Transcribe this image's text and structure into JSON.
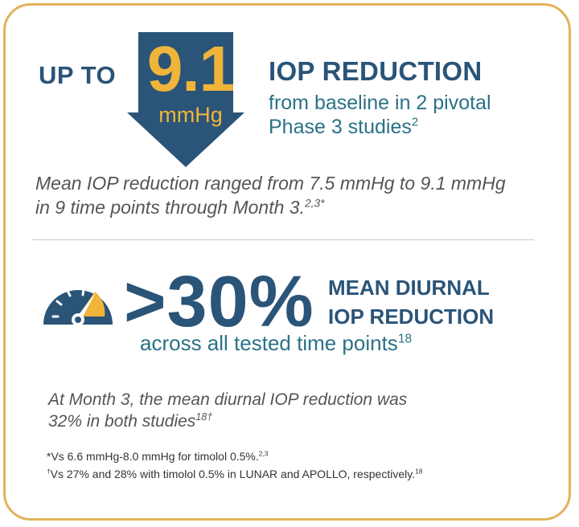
{
  "hero": {
    "prefix": "UP TO",
    "value": "9.1",
    "unit": "mmHg",
    "title": "IOP REDUCTION",
    "subtitle_line1": "from baseline in 2 pivotal",
    "subtitle_line2": "Phase 3 studies",
    "subtitle_ref": "2"
  },
  "range_note": {
    "line1": "Mean IOP reduction ranged from 7.5 mmHg to 9.1 mmHg",
    "line2": "in 9 time points through Month 3.",
    "ref": "2,3*"
  },
  "diurnal": {
    "value": ">30%",
    "title_line1": "MEAN DIURNAL",
    "title_line2": "IOP REDUCTION",
    "subtitle": "across all tested time points",
    "subtitle_ref": "18"
  },
  "month3_note": {
    "line1": "At Month 3, the mean diurnal IOP reduction was",
    "line2": "32% in both studies",
    "ref": "18†"
  },
  "footnotes": {
    "fn1_mark": "*",
    "fn1_text": "Vs 6.6 mmHg-8.0 mmHg for timolol 0.5%.",
    "fn1_ref": "2,3",
    "fn2_mark": "†",
    "fn2_text": "Vs 27% and 28% with timolol 0.5% in LUNAR and APOLLO, respectively.",
    "fn2_ref": "18"
  },
  "colors": {
    "navy": "#2a5478",
    "teal": "#2a7287",
    "gold": "#f1b43a",
    "border": "#e3b25a"
  },
  "icons": {
    "arrow": "down-arrow-icon",
    "gauge": "gauge-icon"
  }
}
